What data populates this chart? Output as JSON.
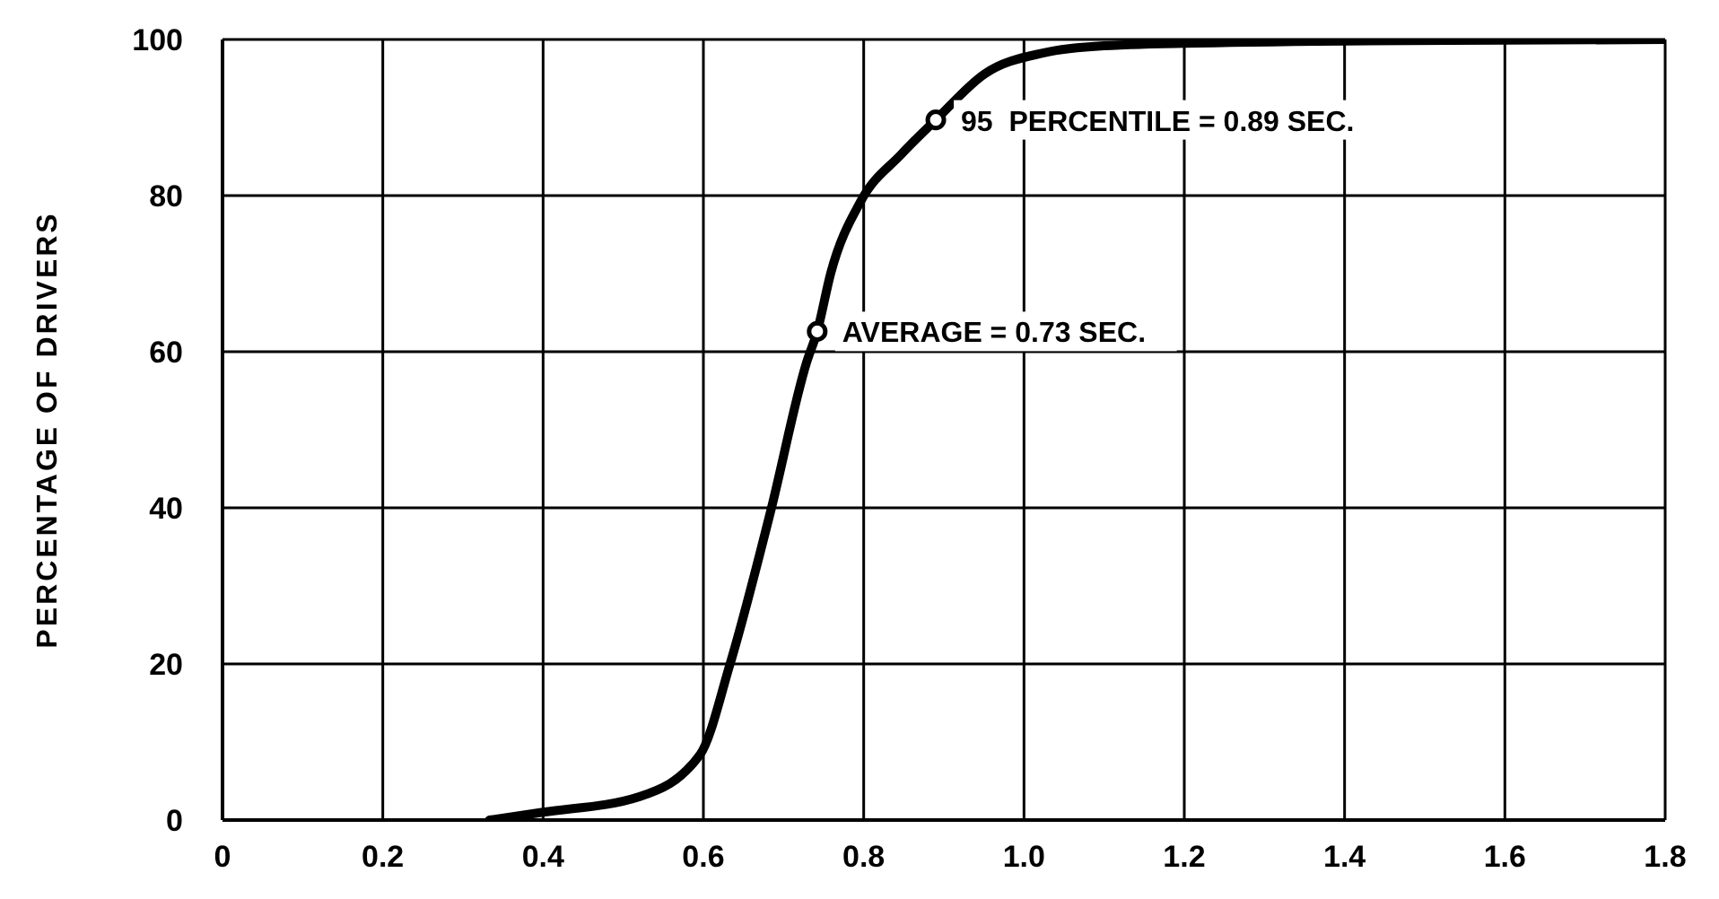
{
  "chart_data": {
    "type": "line",
    "ylabel": "PERCENTAGE OF DRIVERS",
    "xlim": [
      0,
      1.8
    ],
    "xticks": [
      0,
      0.2,
      0.4,
      0.6,
      0.8,
      {
        "value": 1,
        "label": "1.0"
      },
      1.2,
      1.4,
      1.6,
      1.8
    ],
    "ylim": [
      0,
      100
    ],
    "yticks": [
      0,
      20,
      40,
      60,
      80,
      100
    ],
    "grid": true,
    "series": [
      {
        "color": "#000000",
        "marker": "none",
        "x": [
          0.333,
          0.4,
          0.52,
          0.596,
          0.633,
          0.684,
          0.729,
          0.742,
          0.759,
          0.796,
          0.847,
          0.89,
          0.951,
          1.025,
          1.1,
          1.2,
          1.4,
          1.6,
          1.8
        ],
        "values": [
          0,
          1,
          3,
          8.4,
          19.9,
          39.6,
          58.7,
          62.6,
          70.1,
          79.2,
          85.3,
          89.7,
          95.6,
          98.3,
          99.2,
          99.5,
          99.8,
          99.9,
          100
        ]
      },
      {
        "type": "scatter",
        "color": "#000000",
        "marker": "circle",
        "x": [
          0.742,
          0.89
        ],
        "values": [
          62.6,
          89.7
        ]
      }
    ],
    "annotations": [
      {
        "text": "AVERAGE = 0.73 SEC.",
        "x": 0.742,
        "y": 62.6
      },
      {
        "text": "95  PERCENTILE = 0.89 SEC.",
        "x": 0.89,
        "y": 89.7
      }
    ]
  }
}
